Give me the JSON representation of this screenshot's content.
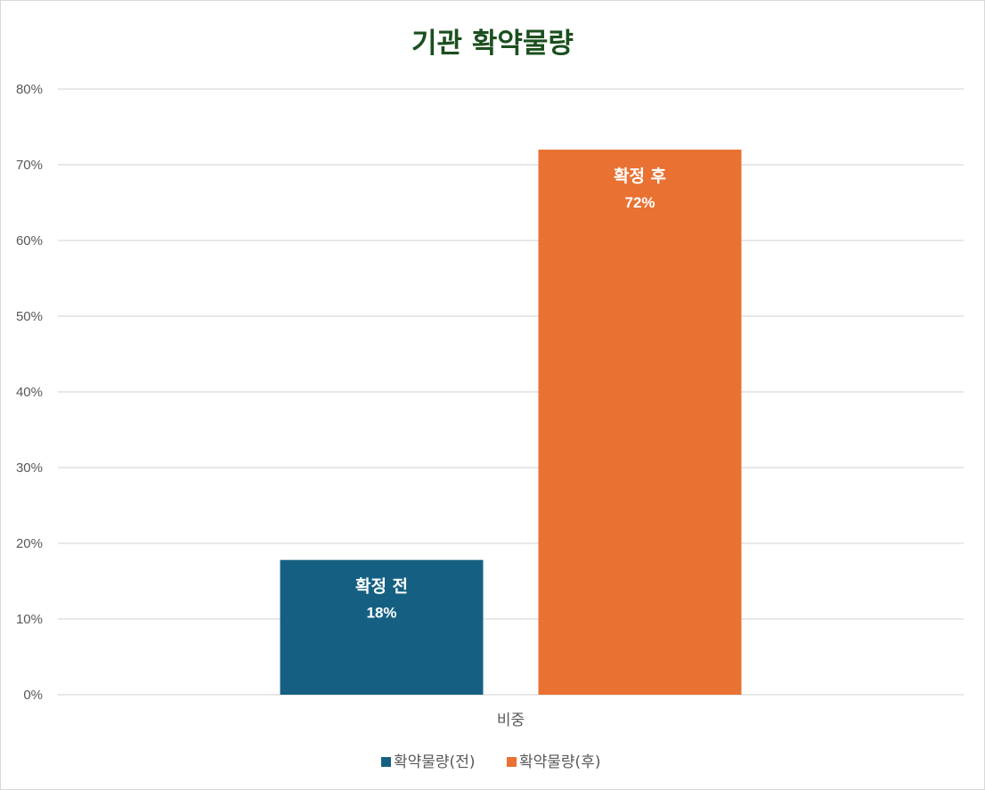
{
  "chart_data": {
    "type": "bar",
    "title": "기관 확약물량",
    "categories": [
      "비중"
    ],
    "series": [
      {
        "name": "확약물량(전)",
        "label": "확정 전",
        "value_label": "18%",
        "values": [
          0.178
        ],
        "color": "#156082"
      },
      {
        "name": "확약물량(후)",
        "label": "확정 후",
        "value_label": "72%",
        "values": [
          0.72
        ],
        "color": "#E97132"
      }
    ],
    "ylim": [
      0,
      0.8
    ],
    "yticks": [
      "0%",
      "10%",
      "20%",
      "30%",
      "40%",
      "50%",
      "60%",
      "70%",
      "80%"
    ],
    "grid": true,
    "legend": "bottom"
  },
  "colors": {
    "title": "#1B4F1F",
    "gridline": "#d9d9d9",
    "axis_text": "#595959"
  }
}
